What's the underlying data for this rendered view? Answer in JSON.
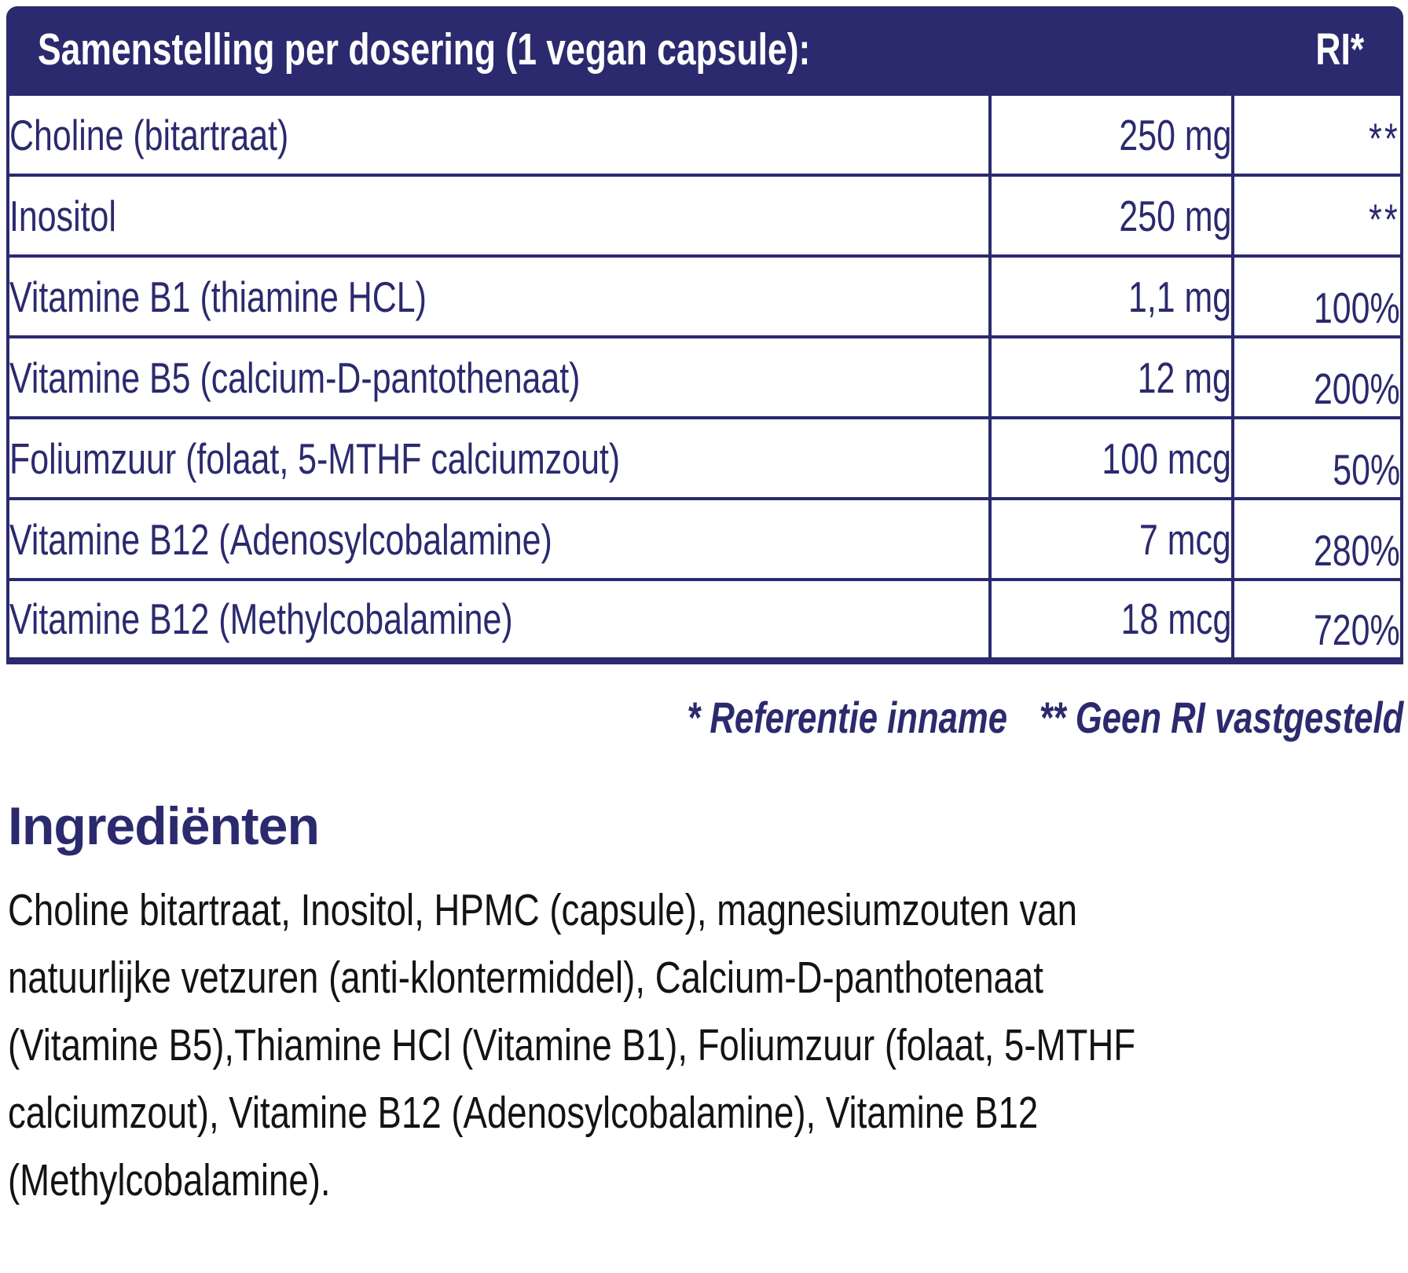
{
  "colors": {
    "navy": "#2b2a6e",
    "paragraph_text": "#131313",
    "header_text": "#ffffff"
  },
  "header": {
    "title": "Samenstelling per dosering (1 vegan capsule):",
    "ri_label": "RI*"
  },
  "table": {
    "rows": [
      {
        "name": "Choline (bitartraat)",
        "amount": "250 mg",
        "ri": "**"
      },
      {
        "name": "Inositol",
        "amount": "250 mg",
        "ri": "**"
      },
      {
        "name": "Vitamine B1 (thiamine HCL)",
        "amount": "1,1 mg",
        "ri": "100%"
      },
      {
        "name": "Vitamine B5 (calcium-D-pantothenaat)",
        "amount": "12 mg",
        "ri": "200%"
      },
      {
        "name": "Foliumzuur (folaat, 5-MTHF calciumzout)",
        "amount": "100 mcg",
        "ri": "50%"
      },
      {
        "name": "Vitamine B12 (Adenosylcobalamine)",
        "amount": "7 mcg",
        "ri": "280%"
      },
      {
        "name": "Vitamine B12 (Methylcobalamine)",
        "amount": "18 mcg",
        "ri": "720%"
      }
    ]
  },
  "footnote": {
    "reference": "* Referentie inname",
    "no_ri": "** Geen RI vastgesteld"
  },
  "ingredients": {
    "heading": "Ingrediënten",
    "lines": [
      "Choline bitartraat, Inositol, HPMC (capsule), magnesiumzouten van",
      "natuurlijke vetzuren (anti-klontermiddel), Calcium-D-panthotenaat",
      "(Vitamine B5),Thiamine HCl (Vitamine B1), Foliumzuur (folaat, 5-MTHF",
      "calciumzout), Vitamine B12 (Adenosylcobalamine), Vitamine B12",
      "(Methylcobalamine)."
    ]
  }
}
